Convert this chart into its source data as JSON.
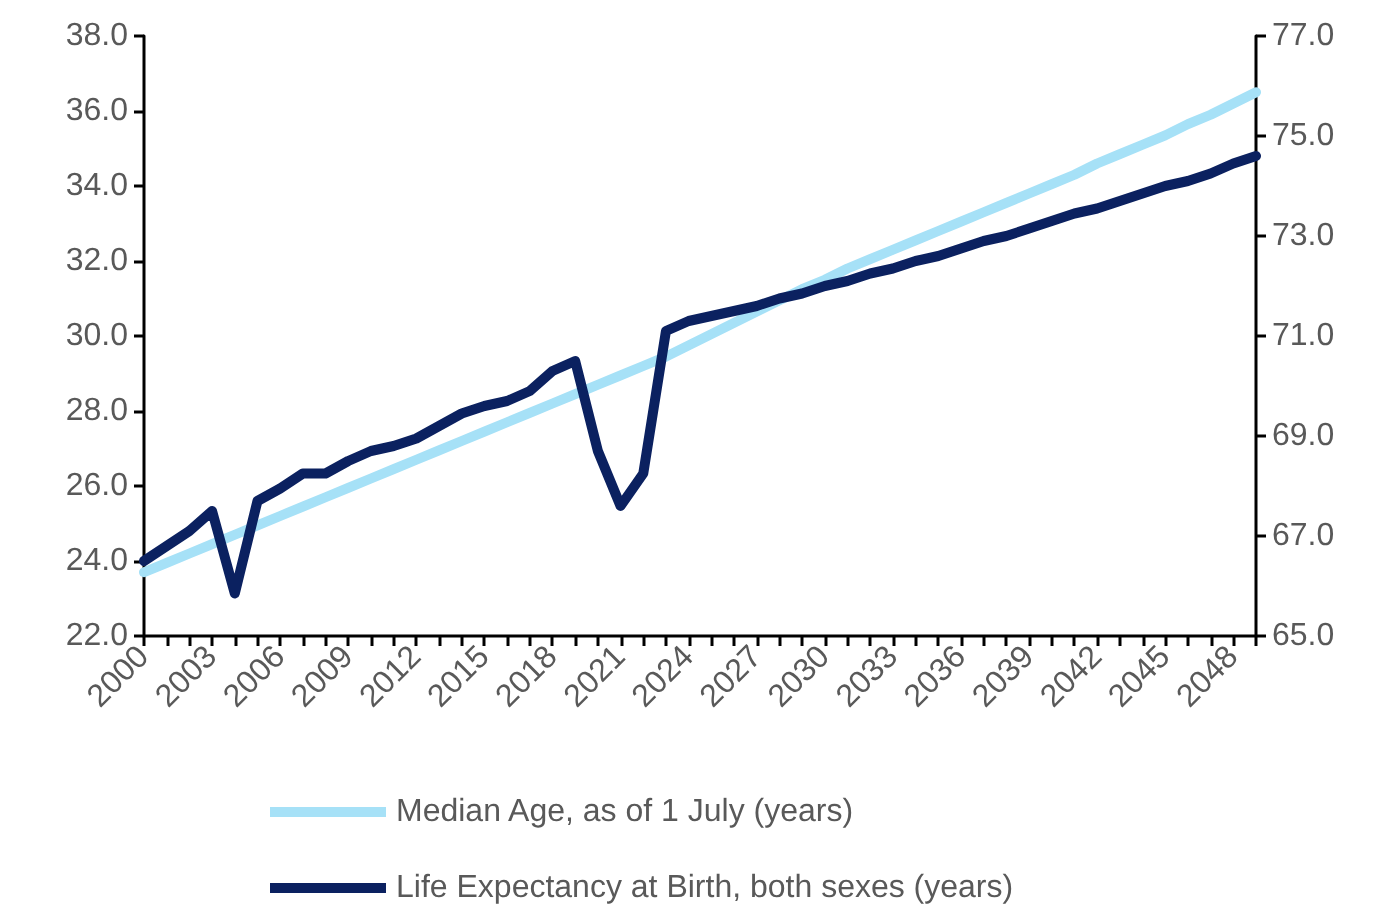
{
  "chart_data": {
    "type": "line",
    "categories": [
      "2000",
      null,
      null,
      "2003",
      null,
      null,
      "2006",
      null,
      null,
      "2009",
      null,
      null,
      "2012",
      null,
      null,
      "2015",
      null,
      null,
      "2018",
      null,
      null,
      "2021",
      null,
      null,
      "2024",
      null,
      null,
      "2027",
      null,
      null,
      "2030",
      null,
      null,
      "2033",
      null,
      null,
      "2036",
      null,
      null,
      "2039",
      null,
      null,
      "2042",
      null,
      null,
      "2045",
      null,
      null,
      "2048",
      null
    ],
    "series": [
      {
        "name": "Median Age, as of 1 July (years)",
        "color": "#a6e1f7",
        "values": [
          23.7,
          23.95,
          24.2,
          24.45,
          24.7,
          24.95,
          25.2,
          25.45,
          25.7,
          25.95,
          26.2,
          26.45,
          26.7,
          26.95,
          27.2,
          27.45,
          27.7,
          27.95,
          28.2,
          28.45,
          28.7,
          28.95,
          29.2,
          29.45,
          29.75,
          30.05,
          30.35,
          30.65,
          30.95,
          31.25,
          31.5,
          31.8,
          32.05,
          32.3,
          32.55,
          32.8,
          33.05,
          33.3,
          33.55,
          33.8,
          34.05,
          34.3,
          34.6,
          34.85,
          35.1,
          35.35,
          35.65,
          35.9,
          36.2,
          36.5
        ]
      },
      {
        "name": "Life Expectancy at Birth, both sexes (years)",
        "color": "#0b2160",
        "axis": "y2",
        "values": [
          66.5,
          66.8,
          67.1,
          67.5,
          65.85,
          67.7,
          67.95,
          68.25,
          68.25,
          68.5,
          68.7,
          68.8,
          68.95,
          69.2,
          69.45,
          69.6,
          69.7,
          69.9,
          70.3,
          70.5,
          68.7,
          67.6,
          68.25,
          71.1,
          71.3,
          71.4,
          71.5,
          71.6,
          71.75,
          71.85,
          72.0,
          72.1,
          72.25,
          72.35,
          72.5,
          72.6,
          72.75,
          72.9,
          73.0,
          73.15,
          73.3,
          73.45,
          73.55,
          73.7,
          73.85,
          74.0,
          74.1,
          74.25,
          74.45,
          74.6
        ]
      }
    ],
    "ylim": [
      22,
      38
    ],
    "yticks": [
      {
        "value": 22,
        "label": "22.0"
      },
      {
        "value": 24,
        "label": "24.0"
      },
      {
        "value": 26,
        "label": "26.0"
      },
      {
        "value": 28,
        "label": "28.0"
      },
      {
        "value": 30,
        "label": "30.0"
      },
      {
        "value": 32,
        "label": "32.0"
      },
      {
        "value": 34,
        "label": "34.0"
      },
      {
        "value": 36,
        "label": "36.0"
      },
      {
        "value": 38,
        "label": "38.0"
      }
    ],
    "y2lim": [
      65,
      77
    ],
    "y2ticks": [
      {
        "value": 65,
        "label": "65.0"
      },
      {
        "value": 67,
        "label": "67.0"
      },
      {
        "value": 69,
        "label": "69.0"
      },
      {
        "value": 71,
        "label": "71.0"
      },
      {
        "value": 73,
        "label": "73.0"
      },
      {
        "value": 75,
        "label": "75.0"
      },
      {
        "value": 77,
        "label": "77.0"
      }
    ],
    "grid": false,
    "legend": "bottom",
    "marker": "none",
    "line_style": "solid"
  }
}
